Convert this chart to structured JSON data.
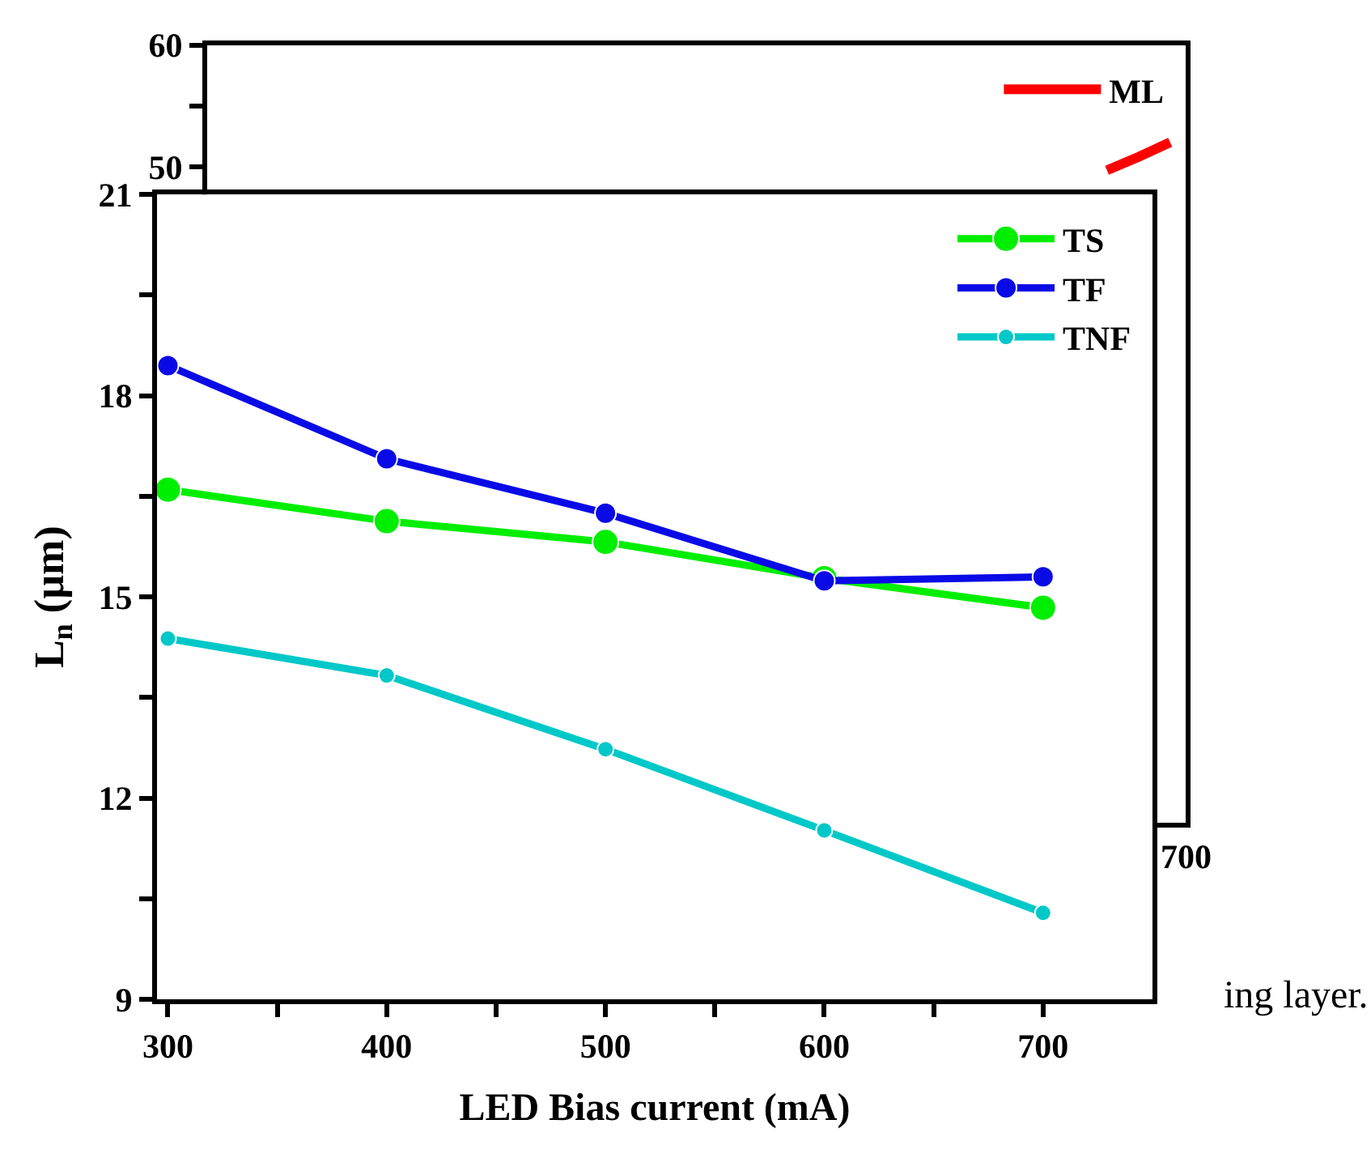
{
  "chart_data": [
    {
      "type": "line",
      "annotations": [
        "700",
        "ing layer."
      ],
      "ylim": [
        -4,
        60
      ],
      "yticks": [
        50,
        {
          "value": 55,
          "label": null
        },
        60
      ],
      "legend": "top right",
      "categories": [
        null,
        null,
        null,
        null,
        null,
        null,
        null,
        null,
        null,
        null,
        null,
        null,
        null,
        null,
        null,
        null,
        null,
        null,
        null,
        null,
        null,
        null,
        null,
        null,
        null,
        null,
        null,
        null,
        null,
        null,
        null
      ],
      "series": [
        {
          "name": "ML",
          "color": "#ff0000",
          "values": [
            null,
            null,
            null,
            null,
            null,
            null,
            null,
            null,
            null,
            null,
            null,
            null,
            null,
            null,
            null,
            null,
            null,
            null,
            null,
            null,
            null,
            null,
            null,
            null,
            null,
            null,
            null,
            null,
            49.7,
            50.8,
            52.0
          ]
        }
      ]
    },
    {
      "type": "line",
      "xlabel": "LED Bias current (mA)",
      "ylabel": "L$_{n}$ (µm)",
      "xlim": [
        295,
        750
      ],
      "xticks": [
        300,
        {
          "value": 350,
          "label": null
        },
        400,
        {
          "value": 450,
          "label": null
        },
        500,
        {
          "value": 550,
          "label": null
        },
        600,
        {
          "value": 650,
          "label": null
        },
        700
      ],
      "ylim": [
        9,
        21
      ],
      "yticks": [
        9,
        {
          "value": 10.5,
          "label": null
        },
        12,
        {
          "value": 13.5,
          "label": null
        },
        15,
        {
          "value": 16.5,
          "label": null
        },
        18,
        {
          "value": 19.5,
          "label": null
        },
        21
      ],
      "legend": "top right",
      "marker": "circle",
      "line_style": "solid",
      "x": [
        300,
        400,
        500,
        600,
        700
      ],
      "series": [
        {
          "name": "TS",
          "color": "#00ee00",
          "values": [
            16.6,
            16.13,
            15.82,
            15.28,
            14.84
          ]
        },
        {
          "name": "TF",
          "color": "#0a0ae6",
          "values": [
            18.45,
            17.06,
            16.25,
            15.24,
            15.3
          ]
        },
        {
          "name": "TNF",
          "color": "#00c8c8",
          "values": [
            14.38,
            13.83,
            12.73,
            11.52,
            10.29
          ]
        }
      ]
    }
  ]
}
